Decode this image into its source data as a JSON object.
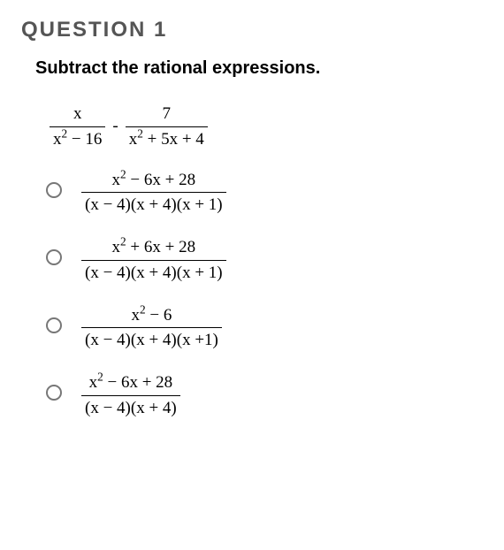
{
  "question": {
    "title": "QUESTION 1",
    "prompt": "Subtract the rational expressions.",
    "problem": {
      "frac1": {
        "num_plain": "x",
        "num_html": "x",
        "den_html": "x<sup>2</sup> − 16"
      },
      "op": "-",
      "frac2": {
        "num_plain": "7",
        "num_html": "7",
        "den_html": "x<sup>2</sup> + 5x + 4"
      }
    },
    "options": [
      {
        "num_html": "x<sup>2</sup> − 6x + 28",
        "den_html": "(x − 4)(x + 4)(x + 1)"
      },
      {
        "num_html": "x<sup>2</sup> + 6x + 28",
        "den_html": "(x − 4)(x + 4)(x + 1)"
      },
      {
        "num_html": "x<sup>2</sup> − 6",
        "den_html": "(x − 4)(x + 4)(x +1)"
      },
      {
        "num_html": "x<sup>2</sup> − 6x + 28",
        "den_html": "(x − 4)(x + 4)"
      }
    ]
  },
  "style": {
    "title_color": "#555555",
    "text_color": "#000000",
    "background": "#ffffff",
    "radio_border": "#777777",
    "font_serif": "Times New Roman",
    "font_sans": "Arial",
    "title_fontsize": 24,
    "prompt_fontsize": 20,
    "math_fontsize": 19
  }
}
